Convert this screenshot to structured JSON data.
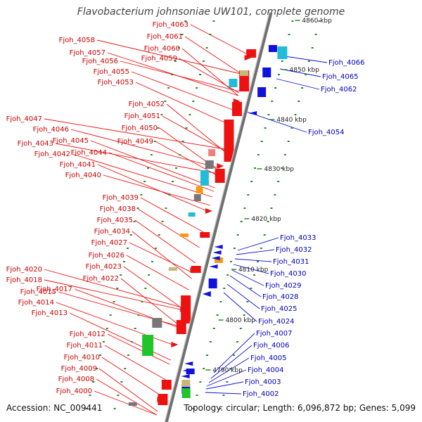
{
  "title": "Flavobacterium johnsoniae UW101, complete genome",
  "footer": {
    "accession": "Accession: NC_009441",
    "topology": "Topology: circular; Length: 6,096,872 bp; Genes: 5,099"
  },
  "colors": {
    "forward_strand": "#ee1111",
    "reverse_strand": "#1111dd",
    "backbone": "#888888",
    "tick": "#2a8a2a",
    "cyan": "#22bcd8",
    "orange": "#f59a12",
    "green": "#22c42a",
    "grey": "#777777",
    "khaki": "#c8b878"
  },
  "kbp_labels": [
    "4860 kbp",
    "4850 kbp",
    "4840 kbp",
    "4830 kbp",
    "4820 kbp",
    "4810 kbp",
    "4800 kbp",
    "4790 kbp"
  ],
  "genes_forward": [
    "Fjoh_4063",
    "Fjoh_4058",
    "Fjoh_4061",
    "Fjoh_4057",
    "Fjoh_4060",
    "Fjoh_4056",
    "Fjoh_4059",
    "Fjoh_4055",
    "Fjoh_4053",
    "Fjoh_4052",
    "Fjoh_4047",
    "Fjoh_4051",
    "Fjoh_4046",
    "Fjoh_4050",
    "Fjoh_4045",
    "Fjoh_4043",
    "Fjoh_4049",
    "Fjoh_4044",
    "Fjoh_4042",
    "Fjoh_4041",
    "Fjoh_4040",
    "Fjoh_4039",
    "Fjoh_4038",
    "Fjoh_4035",
    "Fjoh_4034",
    "Fjoh_4027",
    "Fjoh_4026",
    "Fjoh_4020",
    "Fjoh_4023",
    "Fjoh_4022",
    "Fjoh_4018",
    "Fjoh_4015",
    "Fjoh_4017",
    "Fjoh_4014",
    "Fjoh_4013",
    "Fjoh_4012",
    "Fjoh_4011",
    "Fjoh_4010",
    "Fjoh_4009",
    "Fjoh_4008",
    "Fjoh_4000"
  ],
  "genes_reverse": [
    "Fjoh_4066",
    "Fjoh_4065",
    "Fjoh_4062",
    "Fjoh_4054",
    "Fjoh_4033",
    "Fjoh_4032",
    "Fjoh_4031",
    "Fjoh_4030",
    "Fjoh_4029",
    "Fjoh_4028",
    "Fjoh_4025",
    "Fjoh_4024",
    "Fjoh_4007",
    "Fjoh_4006",
    "Fjoh_4005",
    "Fjoh_4004",
    "Fjoh_4003",
    "Fjoh_4002"
  ]
}
